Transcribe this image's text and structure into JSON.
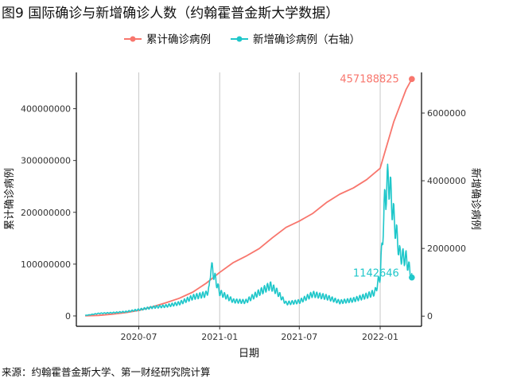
{
  "title": "图9 国际确诊与新增确诊人数（约翰霍普金斯大学数据）",
  "source": "来源：约翰霍普金斯大学、第一财经研究院计算",
  "chart_data": {
    "type": "line",
    "xlabel": "日期",
    "ylabel_left": "累计确诊病例",
    "ylabel_right": "新增确诊病例",
    "x_ticks": [
      "2020-07",
      "2021-01",
      "2021-07",
      "2022-01"
    ],
    "y_left_ticks": [
      "0",
      "100000000",
      "200000000",
      "300000000",
      "400000000"
    ],
    "y_right_ticks": [
      "0",
      "2000000",
      "4000000",
      "6000000"
    ],
    "ylim_left": [
      -20000000,
      470000000
    ],
    "ylim_right": [
      -300000,
      7200000
    ],
    "legend": [
      {
        "name": "累计确诊病例",
        "color": "#F8766D"
      },
      {
        "name": "新增确诊病例（右轴）",
        "color": "#1FC7CA"
      }
    ],
    "grid": "vertical-major",
    "series": [
      {
        "name": "累计确诊病例",
        "axis": "left",
        "color": "#F8766D",
        "x": [
          "2020-03-01",
          "2020-04-01",
          "2020-05-01",
          "2020-06-01",
          "2020-07-01",
          "2020-08-01",
          "2020-09-01",
          "2020-10-01",
          "2020-11-01",
          "2020-12-01",
          "2021-01-01",
          "2021-02-01",
          "2021-03-01",
          "2021-04-01",
          "2021-05-01",
          "2021-06-01",
          "2021-07-01",
          "2021-08-01",
          "2021-09-01",
          "2021-10-01",
          "2021-11-01",
          "2021-12-01",
          "2022-01-01",
          "2022-02-01",
          "2022-03-01",
          "2022-03-14"
        ],
        "values": [
          100000,
          1000000,
          3300000,
          6200000,
          10500000,
          17600000,
          25500000,
          34000000,
          46000000,
          63000000,
          84000000,
          103000000,
          115000000,
          130000000,
          151000000,
          171000000,
          183000000,
          198000000,
          219000000,
          235000000,
          247000000,
          263000000,
          285000000,
          375000000,
          437000000,
          457188825
        ],
        "end_label": "457188825"
      },
      {
        "name": "新增确诊病例（右轴）",
        "axis": "right",
        "color": "#1FC7CA",
        "x": [
          "2020-03-01",
          "2020-04-01",
          "2020-05-01",
          "2020-06-01",
          "2020-07-01",
          "2020-08-01",
          "2020-09-01",
          "2020-10-01",
          "2020-11-01",
          "2020-12-01",
          "2020-12-08",
          "2020-12-12",
          "2021-01-01",
          "2021-02-01",
          "2021-03-01",
          "2021-04-01",
          "2021-04-26",
          "2021-05-10",
          "2021-06-01",
          "2021-07-01",
          "2021-08-01",
          "2021-09-01",
          "2021-10-01",
          "2021-11-01",
          "2021-12-01",
          "2021-12-20",
          "2022-01-01",
          "2022-01-12",
          "2022-01-20",
          "2022-02-01",
          "2022-02-15",
          "2022-03-01",
          "2022-03-14"
        ],
        "values": [
          20000,
          80000,
          100000,
          130000,
          190000,
          260000,
          300000,
          380000,
          560000,
          650000,
          800000,
          1500000,
          700000,
          450000,
          430000,
          700000,
          900000,
          740000,
          380000,
          430000,
          650000,
          560000,
          420000,
          480000,
          600000,
          700000,
          1200000,
          3500000,
          4100000,
          2900000,
          1800000,
          1700000,
          1142646
        ],
        "end_label": "1142646"
      }
    ]
  }
}
